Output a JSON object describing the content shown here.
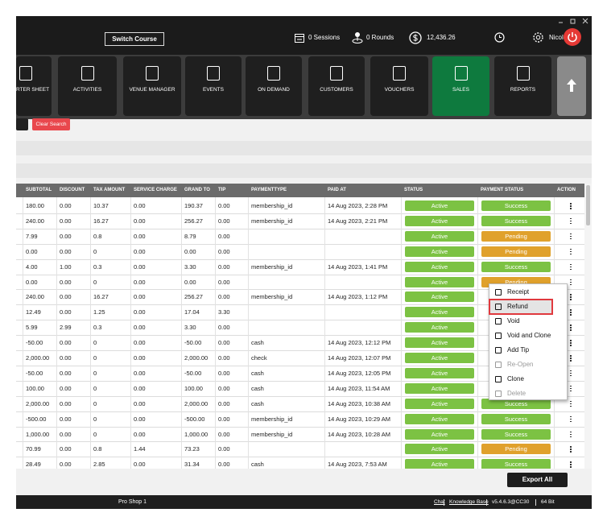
{
  "header": {
    "switch_course": "Switch Course",
    "sessions": "0 Sessions",
    "rounds": "0 Rounds",
    "balance": "12,436.26",
    "user": "Nicole"
  },
  "nav": [
    {
      "label": "RTER SHEET"
    },
    {
      "label": "ACTIVITIES"
    },
    {
      "label": "VENUE MANAGER"
    },
    {
      "label": "EVENTS"
    },
    {
      "label": "ON DEMAND"
    },
    {
      "label": "CUSTOMERS"
    },
    {
      "label": "VOUCHERS"
    },
    {
      "label": "SALES"
    },
    {
      "label": "REPORTS"
    }
  ],
  "toolbar": {
    "clear_search": "Clear Search"
  },
  "table": {
    "columns": [
      "SUBTOTAL",
      "DISCOUNT",
      "TAX AMOUNT",
      "SERVICE CHARGE",
      "GRAND TO",
      "TIP",
      "PAYMENTTYPE",
      "PAID AT",
      "STATUS",
      "PAYMENT STATUS",
      "ACTION"
    ],
    "rows": [
      [
        "180.00",
        "0.00",
        "10.37",
        "0.00",
        "190.37",
        "0.00",
        "membership_id",
        "14 Aug 2023, 2:28 PM",
        "Active",
        "Success"
      ],
      [
        "240.00",
        "0.00",
        "16.27",
        "0.00",
        "256.27",
        "0.00",
        "membership_id",
        "14 Aug 2023, 2:21 PM",
        "Active",
        "Success"
      ],
      [
        "7.99",
        "0.00",
        "0.8",
        "0.00",
        "8.79",
        "0.00",
        null,
        null,
        "Active",
        "Pending"
      ],
      [
        "0.00",
        "0.00",
        "0",
        "0.00",
        "0.00",
        "0.00",
        null,
        null,
        "Active",
        "Pending"
      ],
      [
        "4.00",
        "1.00",
        "0.3",
        "0.00",
        "3.30",
        "0.00",
        "membership_id",
        "14 Aug 2023, 1:41 PM",
        "Active",
        "Success"
      ],
      [
        "0.00",
        "0.00",
        "0",
        "0.00",
        "0.00",
        "0.00",
        null,
        null,
        "Active",
        "Pending"
      ],
      [
        "240.00",
        "0.00",
        "16.27",
        "0.00",
        "256.27",
        "0.00",
        "membership_id",
        "14 Aug 2023, 1:12 PM",
        "Active",
        null
      ],
      [
        "12.49",
        "0.00",
        "1.25",
        "0.00",
        "17.04",
        "3.30",
        null,
        null,
        "Active",
        null
      ],
      [
        "5.99",
        "2.99",
        "0.3",
        "0.00",
        "3.30",
        "0.00",
        null,
        null,
        "Active",
        null
      ],
      [
        "-50.00",
        "0.00",
        "0",
        "0.00",
        "-50.00",
        "0.00",
        "cash",
        "14 Aug 2023, 12:12 PM",
        "Active",
        null
      ],
      [
        "2,000.00",
        "0.00",
        "0",
        "0.00",
        "2,000.00",
        "0.00",
        "check",
        "14 Aug 2023, 12:07 PM",
        "Active",
        null
      ],
      [
        "-50.00",
        "0.00",
        "0",
        "0.00",
        "-50.00",
        "0.00",
        "cash",
        "14 Aug 2023, 12:05 PM",
        "Active",
        null
      ],
      [
        "100.00",
        "0.00",
        "0",
        "0.00",
        "100.00",
        "0.00",
        "cash",
        "14 Aug 2023, 11:54 AM",
        "Active",
        null
      ],
      [
        "2,000.00",
        "0.00",
        "0",
        "0.00",
        "2,000.00",
        "0.00",
        "cash",
        "14 Aug 2023, 10:38 AM",
        "Active",
        "Success"
      ],
      [
        "-500.00",
        "0.00",
        "0",
        "0.00",
        "-500.00",
        "0.00",
        "membership_id",
        "14 Aug 2023, 10:29 AM",
        "Active",
        "Success"
      ],
      [
        "1,000.00",
        "0.00",
        "0",
        "0.00",
        "1,000.00",
        "0.00",
        "membership_id",
        "14 Aug 2023, 10:28 AM",
        "Active",
        "Success"
      ],
      [
        "70.99",
        "0.00",
        "0.8",
        "1.44",
        "73.23",
        "0.00",
        null,
        null,
        "Active",
        "Pending"
      ],
      [
        "28.49",
        "0.00",
        "2.85",
        "0.00",
        "31.34",
        "0.00",
        "cash",
        "14 Aug 2023, 7:53 AM",
        "Active",
        "Success"
      ]
    ]
  },
  "context_menu": {
    "items": [
      {
        "label": "Receipt",
        "enabled": true
      },
      {
        "label": "Refund",
        "enabled": true
      },
      {
        "label": "Void",
        "enabled": true
      },
      {
        "label": "Void and Clone",
        "enabled": true
      },
      {
        "label": "Add Tip",
        "enabled": true
      },
      {
        "label": "Re-Open",
        "enabled": false
      },
      {
        "label": "Clone",
        "enabled": true
      },
      {
        "label": "Delete",
        "enabled": false
      }
    ],
    "highlighted": 1
  },
  "export_all": "Export All",
  "footer": {
    "store": "Pro Shop 1",
    "links": [
      "Chat",
      "Knowledge Base",
      "v5.4.6.3@CC30",
      "64 Bit"
    ]
  }
}
